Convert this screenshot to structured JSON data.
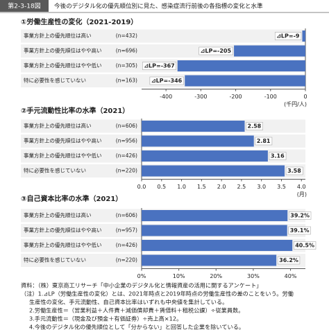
{
  "header": {
    "figure_no": "第2-3-18図",
    "title": "今後のデジタル化の優先順位別に見た、感染症流行前後の各指標の変化と水準"
  },
  "chart_data": [
    {
      "type": "bar",
      "title": "①労働生産性の変化（2021-2019）",
      "categories": [
        "事業方針上の優先順位は高い",
        "事業方針上の優先順位はやや高い",
        "事業方針上の優先順位はやや低い",
        "特に必要性を感じていない"
      ],
      "n_labels": [
        "(n=432)",
        "(n=696)",
        "(n=305)",
        "(n=163)"
      ],
      "values": [
        -9,
        -205,
        -367,
        -346
      ],
      "value_labels": [
        "⊿LP=-9",
        "⊿LP=-205",
        "⊿LP=-367",
        "⊿LP=-346"
      ],
      "color": "#4a72c0",
      "xlim": [
        -470,
        0
      ],
      "xticks": [
        -400,
        -300,
        -200,
        -100,
        0
      ],
      "unit": "(千円/人)"
    },
    {
      "type": "bar",
      "title": "②手元流動性比率の水準（2021）",
      "categories": [
        "事業方針上の優先順位は高い",
        "事業方針上の優先順位はやや高い",
        "事業方針上の優先順位はやや低い",
        "特に必要性を感じていない"
      ],
      "n_labels": [
        "(n=606)",
        "(n=956)",
        "(n=426)",
        "(n=220)"
      ],
      "values": [
        2.58,
        2.81,
        3.16,
        3.58
      ],
      "color": "#4a72c0",
      "xlim": [
        0,
        4.1
      ],
      "xticks": [
        {
          "value": 0,
          "label": "0.0"
        },
        0.5,
        {
          "value": 1,
          "label": "1.0"
        },
        1.5,
        {
          "value": 2,
          "label": "2.0"
        },
        2.5,
        {
          "value": 3,
          "label": "3.0"
        },
        3.5,
        {
          "value": 4,
          "label": "4.0"
        }
      ],
      "unit": "(月)"
    },
    {
      "type": "bar",
      "title": "③自己資本比率の水準（2021）",
      "categories": [
        "事業方針上の優先順位は高い",
        "事業方針上の優先順位はやや高い",
        "事業方針上の優先順位はやや低い",
        "特に必要性を感じていない"
      ],
      "n_labels": [
        "(n=606)",
        "(n=957)",
        "(n=426)",
        "(n=220)"
      ],
      "values": [
        39.2,
        39.1,
        40.5,
        36.2
      ],
      "value_labels": [
        "39.2%",
        "39.1%",
        "40.5%",
        "36.2%"
      ],
      "color": "#4a72c0",
      "xlim": [
        0,
        44
      ],
      "xticks": [
        {
          "value": 0,
          "label": "0%"
        },
        {
          "value": 10,
          "label": "10%"
        },
        {
          "value": 20,
          "label": "20%"
        },
        {
          "value": 30,
          "label": "30%"
        },
        {
          "value": 40,
          "label": "40%"
        }
      ]
    }
  ],
  "notes": [
    "資料：（株）東京商工リサーチ「中小企業のデジタル化と情報資産の活用に関するアンケート」",
    "（注）1.⊿LP（労働生産性の変化）とは、2021年時点と2019年時点の労働生産性の差のことをいう。労働",
    "生産性の変化、手元流動性、自己資本比率はいずれも中央値を集計している。",
    "2.労働生産性＝（営業利益＋人件費＋減価償却費＋賃借料＋租税公課）÷従業員数。",
    "3.手元流動性＝（現金及び預金＋有価証券）÷売上高×12。",
    "4.今後のデジタル化の優先順位として「分からない」と回答した企業を除いている。"
  ]
}
